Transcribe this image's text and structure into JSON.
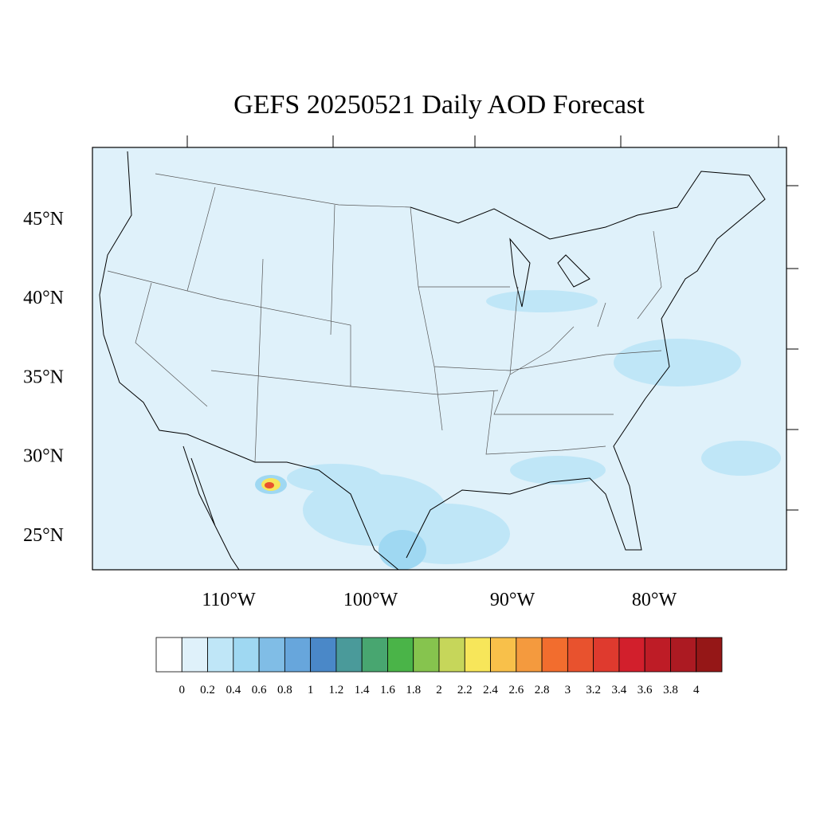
{
  "title": "GEFS 20250521 Daily AOD Forecast",
  "lat_labels": [
    "45°N",
    "40°N",
    "35°N",
    "30°N",
    "25°N"
  ],
  "lon_labels": [
    "110°W",
    "100°W",
    "90°W",
    "80°W"
  ],
  "colorbar": {
    "labels": [
      "0",
      "0.2",
      "0.4",
      "0.6",
      "0.8",
      "1",
      "1.2",
      "1.4",
      "1.6",
      "1.8",
      "2",
      "2.2",
      "2.4",
      "2.6",
      "2.8",
      "3",
      "3.2",
      "3.4",
      "3.6",
      "3.8",
      "4"
    ],
    "colors": [
      "#ffffff",
      "#dff1fa",
      "#bfe6f7",
      "#9fd8f2",
      "#80bde6",
      "#67a6dc",
      "#4a88c8",
      "#4a9a9a",
      "#48a670",
      "#4ab448",
      "#86c44e",
      "#c6d65a",
      "#f7e65a",
      "#f8c04a",
      "#f49a3e",
      "#f26d2e",
      "#e8522e",
      "#df3a2e",
      "#d21f2c",
      "#be1c26",
      "#ac1a22",
      "#951717"
    ]
  }
}
